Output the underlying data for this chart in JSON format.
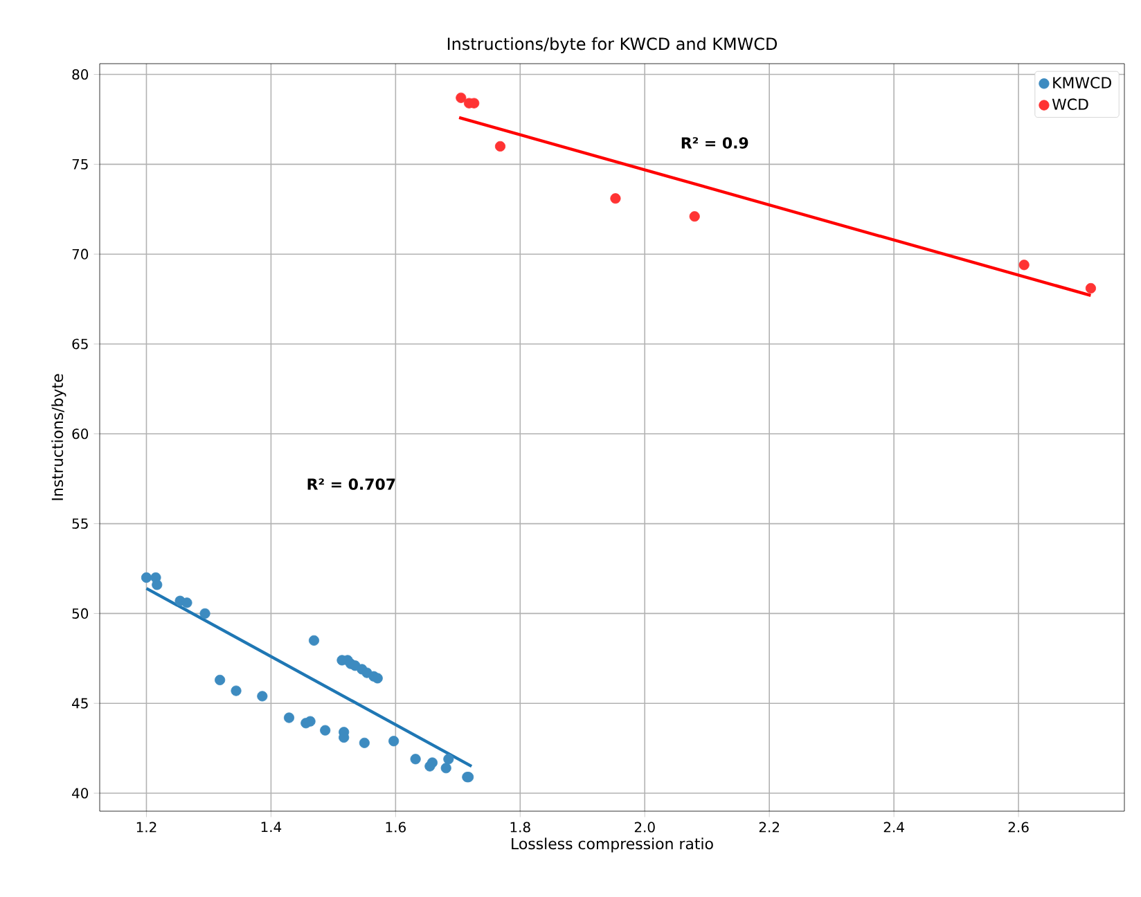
{
  "chart_data": {
    "type": "scatter",
    "title": "Instructions/byte for KWCD and KMWCD",
    "xlabel": "Lossless compression ratio",
    "ylabel": "Instructions/byte",
    "xlim": [
      1.125,
      2.77
    ],
    "ylim": [
      39.0,
      80.6
    ],
    "xticks": [
      1.2,
      1.4,
      1.6,
      1.8,
      {
        "value": 2.0,
        "label": "2.0"
      },
      2.2,
      2.4,
      2.6
    ],
    "yticks": [
      40,
      45,
      50,
      55,
      60,
      65,
      70,
      75,
      80
    ],
    "grid": true,
    "legend": "top right",
    "series": [
      {
        "name": "KMWCD",
        "marker": "circle",
        "color": "#3d8bc0",
        "x": [
          1.2,
          1.215,
          1.217,
          1.254,
          1.265,
          1.294,
          1.469,
          1.318,
          1.344,
          1.386,
          1.429,
          1.456,
          1.463,
          1.487,
          1.517,
          1.517,
          1.55,
          1.597,
          1.632,
          1.655,
          1.659,
          1.681,
          1.685,
          1.717,
          1.715,
          1.514,
          1.523,
          1.528,
          1.535,
          1.546,
          1.554,
          1.565,
          1.571
        ],
        "values": [
          52.0,
          52.0,
          51.6,
          50.7,
          50.6,
          50.0,
          48.5,
          46.3,
          45.7,
          45.4,
          44.2,
          43.9,
          44.0,
          43.5,
          43.4,
          43.1,
          42.8,
          42.9,
          41.9,
          41.5,
          41.7,
          41.4,
          41.9,
          40.9,
          40.9,
          47.4,
          47.4,
          47.2,
          47.1,
          46.9,
          46.7,
          46.5,
          46.4
        ]
      },
      {
        "name": "WCD",
        "marker": "circle",
        "color": "#ff3333",
        "x": [
          1.705,
          1.718,
          1.726,
          1.768,
          1.953,
          2.08,
          2.609,
          2.716
        ],
        "values": [
          78.7,
          78.4,
          78.4,
          76.0,
          73.1,
          72.1,
          69.4,
          68.1
        ]
      },
      {
        "type": "line",
        "marker": "none",
        "color": "#1f77b4",
        "x": [
          1.2,
          1.722
        ],
        "values": [
          51.4,
          41.5
        ]
      },
      {
        "type": "line",
        "marker": "none",
        "color": "#ff0000",
        "x": [
          1.702,
          2.716
        ],
        "values": [
          77.6,
          67.7
        ]
      }
    ],
    "annotations": [
      "R² = 0.707",
      "R² = 0.9"
    ]
  }
}
